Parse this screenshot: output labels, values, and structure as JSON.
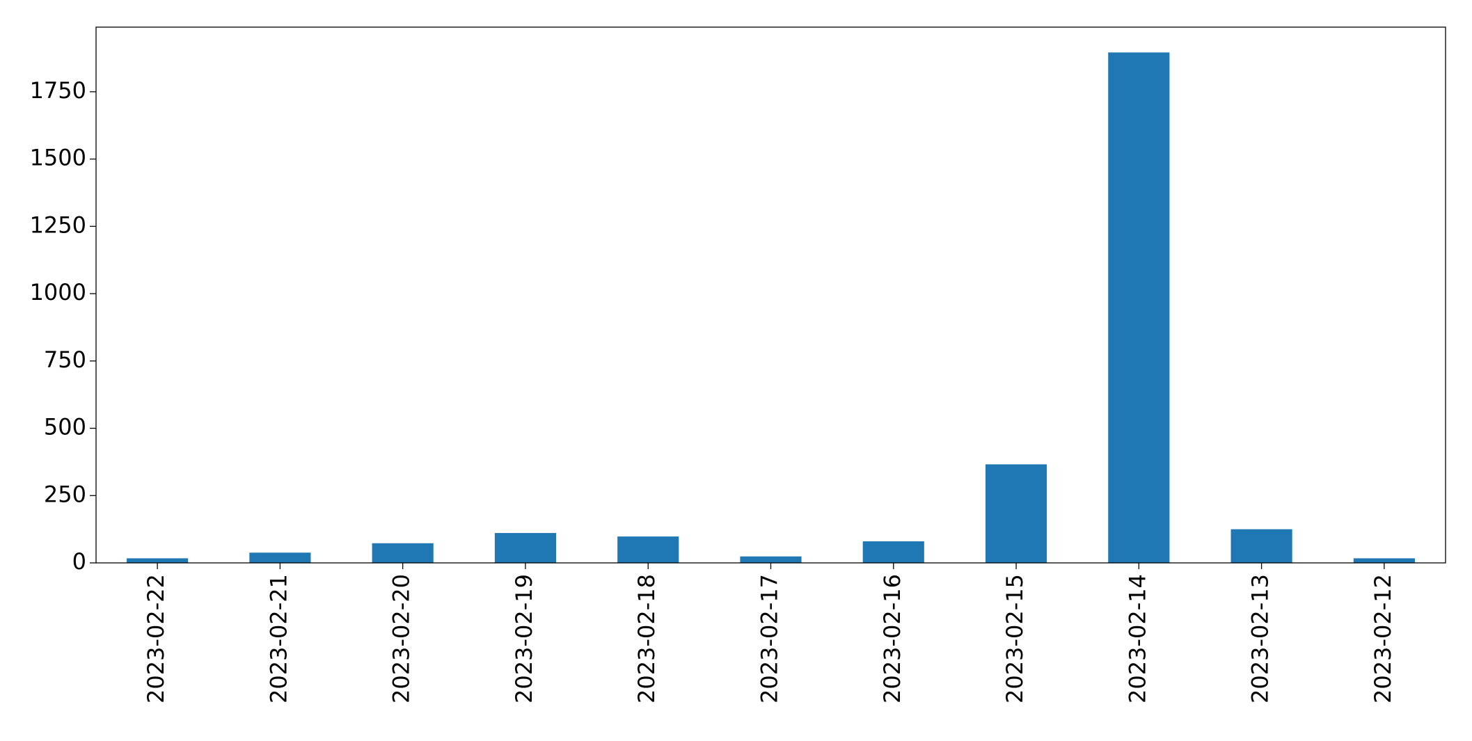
{
  "chart_data": {
    "type": "bar",
    "categories": [
      "2023-02-22",
      "2023-02-21",
      "2023-02-20",
      "2023-02-19",
      "2023-02-18",
      "2023-02-17",
      "2023-02-16",
      "2023-02-15",
      "2023-02-14",
      "2023-02-13",
      "2023-02-12"
    ],
    "values": [
      17,
      38,
      73,
      111,
      98,
      24,
      80,
      366,
      1896,
      125,
      17
    ],
    "color": "#1f77b4",
    "ylim": [
      0,
      1990
    ],
    "yticks": [
      0,
      250,
      500,
      750,
      1000,
      1250,
      1500,
      1750
    ],
    "grid": false
  }
}
